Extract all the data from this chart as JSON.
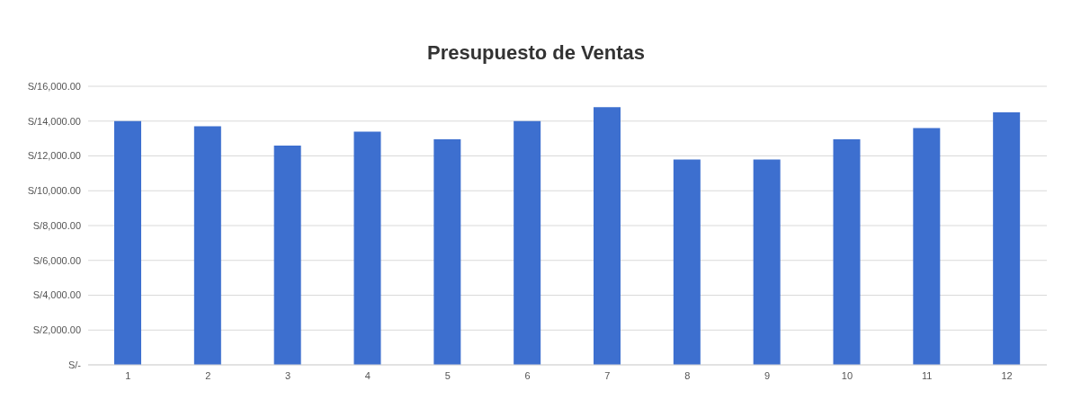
{
  "chart_data": {
    "type": "bar",
    "title": "Presupuesto de Ventas",
    "categories": [
      "1",
      "2",
      "3",
      "4",
      "5",
      "6",
      "7",
      "8",
      "9",
      "10",
      "11",
      "12"
    ],
    "values": [
      14000,
      13700,
      12600,
      13400,
      12950,
      14000,
      14800,
      11800,
      11800,
      12950,
      13600,
      14500
    ],
    "color": "#3d6fcf",
    "ylim": [
      0,
      16000
    ],
    "yticks": [
      {
        "value": 0,
        "label": "S/-"
      },
      {
        "value": 2000,
        "label": "S/2,000.00"
      },
      {
        "value": 4000,
        "label": "S/4,000.00"
      },
      {
        "value": 6000,
        "label": "S/6,000.00"
      },
      {
        "value": 8000,
        "label": "S/8,000.00"
      },
      {
        "value": 10000,
        "label": "S/10,000.00"
      },
      {
        "value": 12000,
        "label": "S/12,000.00"
      },
      {
        "value": 14000,
        "label": "S/14,000.00"
      },
      {
        "value": 16000,
        "label": "S/16,000.00"
      }
    ],
    "grid": "y",
    "legend": false
  }
}
